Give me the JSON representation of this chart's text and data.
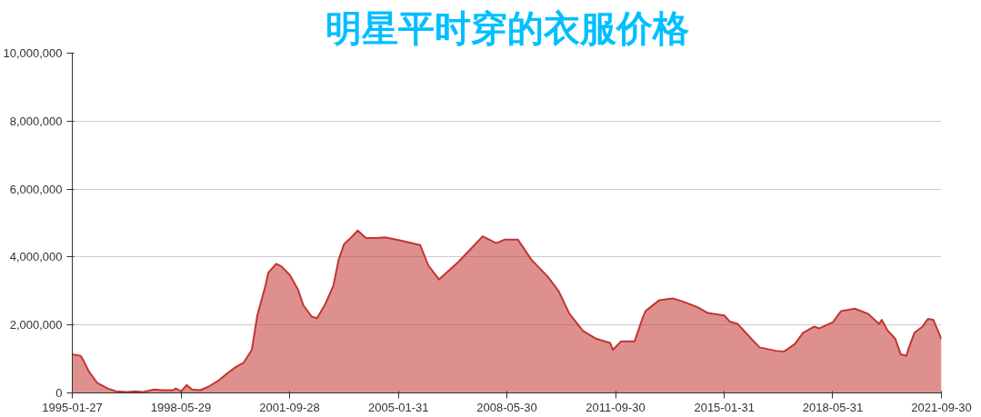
{
  "chart_data": {
    "type": "area",
    "title": "明星平时穿的衣服价格",
    "x": [
      "1995-01-27",
      "1995-05",
      "1995-06",
      "1995-08",
      "1995-11",
      "1996-03",
      "1996-06",
      "1996-10",
      "1997-01",
      "1997-04",
      "1997-08",
      "1997-11",
      "1998-03",
      "1998-04",
      "1998-06",
      "1998-08",
      "1998-10",
      "1999-01",
      "1999-04",
      "1999-08",
      "1999-11",
      "2000-02",
      "2000-05",
      "2000-08",
      "2000-10",
      "2001-01",
      "2001-02",
      "2001-05",
      "2001-07",
      "2001-10",
      "2002-01",
      "2002-03",
      "2002-06",
      "2002-08",
      "2002-11",
      "2003-02",
      "2003-04",
      "2003-06",
      "2003-08",
      "2003-11",
      "2004-02",
      "2004-06",
      "2004-09",
      "2005-02",
      "2005-10",
      "2006-01",
      "2006-05",
      "2006-12",
      "2007-06",
      "2007-09",
      "2008-02",
      "2008-05",
      "2008-10",
      "2009-03",
      "2009-09",
      "2010-01",
      "2010-05",
      "2010-10",
      "2011-03",
      "2011-08",
      "2011-09",
      "2011-12",
      "2012-05",
      "2012-08",
      "2012-09",
      "2013-02",
      "2013-07",
      "2013-10",
      "2014-04",
      "2014-08",
      "2015-02",
      "2015-04",
      "2015-07",
      "2015-12",
      "2016-03",
      "2016-09",
      "2016-12",
      "2017-04",
      "2017-07",
      "2017-11",
      "2018-01",
      "2018-06",
      "2018-09",
      "2019-02",
      "2019-07",
      "2019-11",
      "2019-12",
      "2020-02",
      "2020-05",
      "2020-07",
      "2020-09",
      "2020-10",
      "2020-12",
      "2021-03",
      "2021-05",
      "2021-07",
      "2021-09-30"
    ],
    "series": [
      {
        "color": "#c23531",
        "values": [
          1140000,
          1090000,
          960000,
          630000,
          300000,
          130000,
          50000,
          30000,
          50000,
          30000,
          100000,
          80000,
          80000,
          130000,
          50000,
          230000,
          100000,
          80000,
          180000,
          380000,
          580000,
          760000,
          890000,
          1270000,
          2280000,
          3160000,
          3540000,
          3800000,
          3720000,
          3470000,
          3040000,
          2580000,
          2250000,
          2200000,
          2610000,
          3160000,
          3920000,
          4380000,
          4530000,
          4780000,
          4560000,
          4560000,
          4580000,
          4500000,
          4350000,
          3750000,
          3340000,
          3850000,
          4350000,
          4610000,
          4410000,
          4510000,
          4510000,
          3920000,
          3420000,
          2990000,
          2330000,
          1820000,
          1590000,
          1470000,
          1270000,
          1520000,
          1520000,
          2230000,
          2410000,
          2730000,
          2780000,
          2710000,
          2530000,
          2350000,
          2280000,
          2100000,
          2030000,
          1590000,
          1340000,
          1240000,
          1220000,
          1440000,
          1770000,
          1950000,
          1900000,
          2080000,
          2410000,
          2480000,
          2330000,
          2030000,
          2150000,
          1850000,
          1590000,
          1140000,
          1090000,
          1340000,
          1770000,
          1950000,
          2180000,
          2150000,
          1590000
        ]
      }
    ],
    "ylim": [
      0,
      10000000
    ],
    "yticks": [
      0,
      {
        "value": 2000000,
        "label": "2,000,000"
      },
      {
        "value": 4000000,
        "label": "4,000,000"
      },
      {
        "value": 6000000,
        "label": "6,000,000"
      },
      {
        "value": 8000000,
        "label": "8,000,000"
      },
      {
        "value": 10000000,
        "label": "10,000,000"
      }
    ],
    "xlim": [
      "1995-01-27",
      "2021-09-30"
    ],
    "xticks": [
      "1995-01-27",
      "1998-05-29",
      "2001-09-28",
      "2005-01-31",
      "2008-05-30",
      "2011-09-30",
      "2015-01-31",
      "2018-05-31",
      "2021-09-30"
    ],
    "grid": "y"
  }
}
